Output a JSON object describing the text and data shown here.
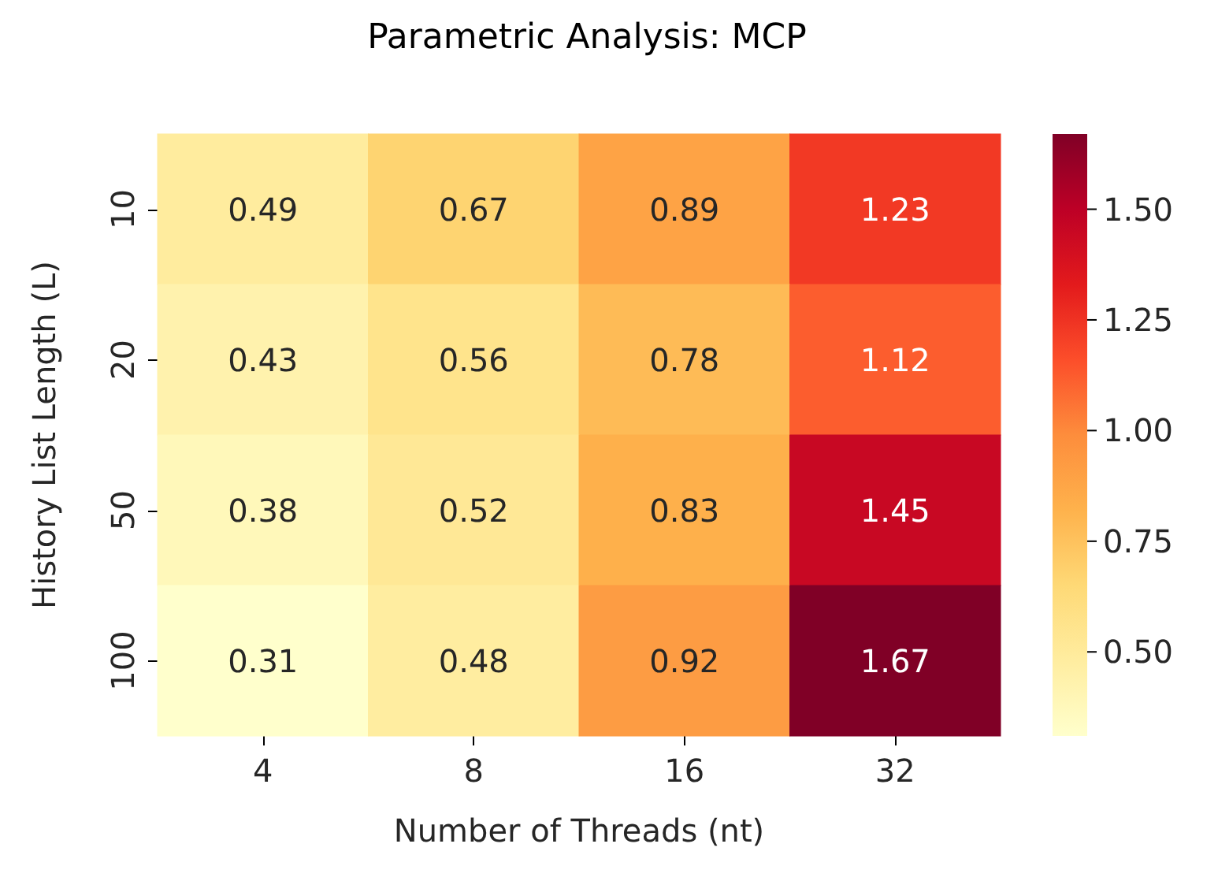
{
  "chart_data": {
    "type": "heatmap",
    "title": "Parametric Analysis: MCP",
    "xlabel": "Number of Threads (nt)",
    "ylabel": "History List Length (L)",
    "categories": [
      "4",
      "8",
      "16",
      "32"
    ],
    "y_categories": [
      "10",
      "20",
      "50",
      "100"
    ],
    "cells": [
      [
        0.49,
        0.67,
        0.89,
        1.23
      ],
      [
        0.43,
        0.56,
        0.78,
        1.12
      ],
      [
        0.38,
        0.52,
        0.83,
        1.45
      ],
      [
        0.31,
        0.48,
        0.92,
        1.67
      ]
    ],
    "data_labels": true,
    "clim": [
      0.31,
      1.67
    ],
    "cticks": [
      {
        "value": 0.5,
        "label": "0.50"
      },
      {
        "value": 0.75,
        "label": "0.75"
      },
      {
        "value": 1.0,
        "label": "1.00"
      },
      {
        "value": 1.25,
        "label": "1.25"
      },
      {
        "value": 1.5,
        "label": "1.50"
      }
    ]
  }
}
